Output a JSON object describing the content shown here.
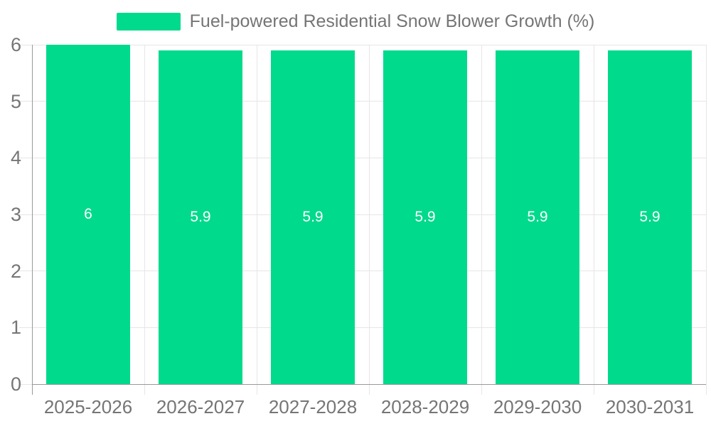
{
  "chart_data": {
    "type": "bar",
    "title": "Fuel-powered Residential Snow Blower Growth (%)",
    "categories": [
      "2025-2026",
      "2026-2027",
      "2027-2028",
      "2028-2029",
      "2029-2030",
      "2030-2031"
    ],
    "values": [
      6,
      5.9,
      5.9,
      5.9,
      5.9,
      5.9
    ],
    "value_labels": [
      "6",
      "5.9",
      "5.9",
      "5.9",
      "5.9",
      "5.9"
    ],
    "xlabel": "",
    "ylabel": "",
    "ylim": [
      0,
      6
    ],
    "yticks": [
      0,
      1,
      2,
      3,
      4,
      5,
      6
    ],
    "grid": true,
    "legend_position": "top-center",
    "colors": {
      "bar": "#00da8c",
      "grid": "#e6e6e6",
      "axis": "#999999",
      "tick_text": "#757575",
      "title_text": "#757575",
      "value_text": "#ffffff",
      "background": "#ffffff"
    }
  }
}
